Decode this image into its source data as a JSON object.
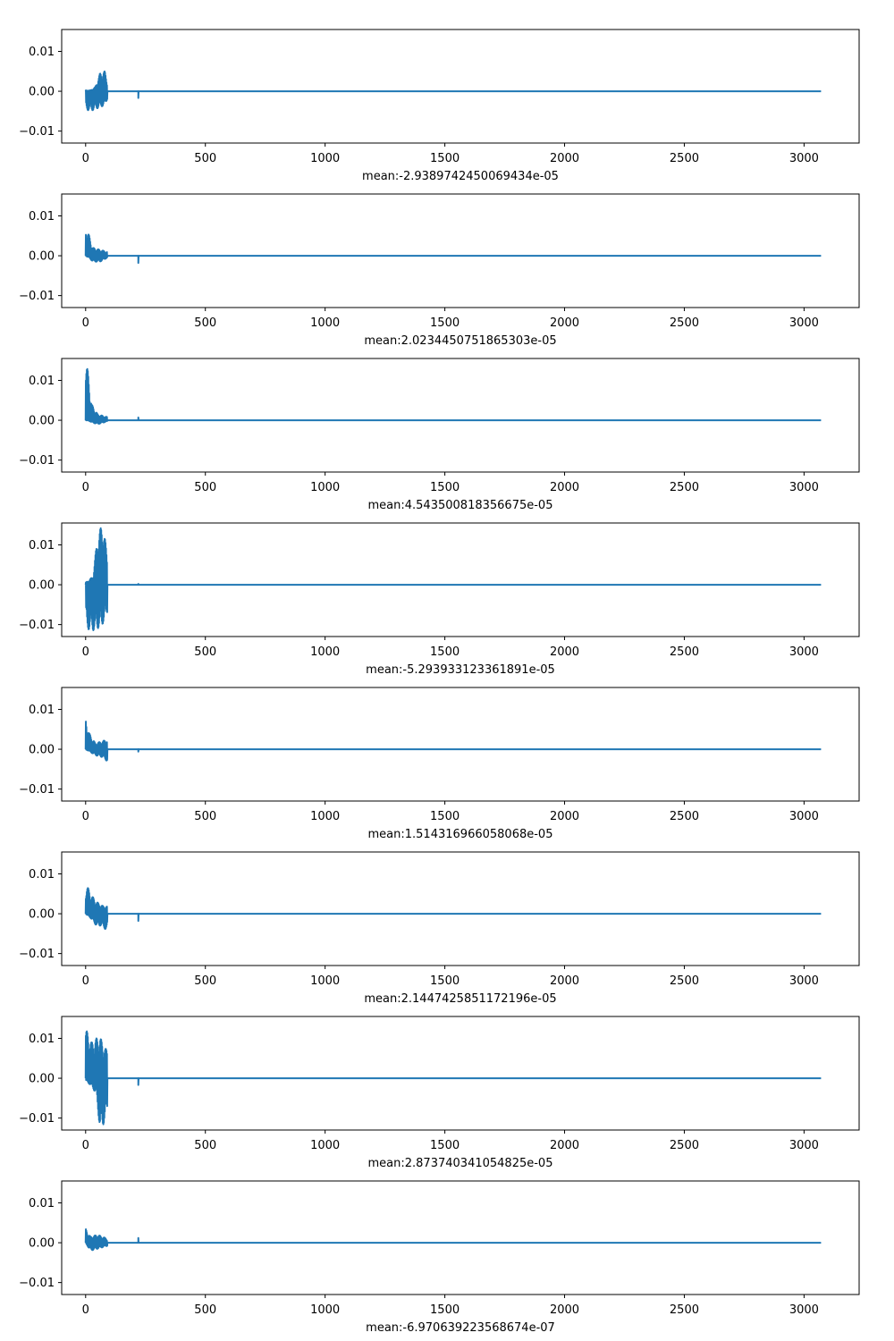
{
  "chart_data": [
    {
      "type": "line",
      "xlabel": "mean:-2.9389742450069434e-05",
      "xlim": [
        -100,
        3230
      ],
      "ylim": [
        -0.013,
        0.0155
      ],
      "xticks": [
        0,
        500,
        1000,
        1500,
        2000,
        2500,
        3000
      ],
      "yticks": [
        -0.01,
        0.0,
        0.01
      ],
      "xtick_labels": [
        "0",
        "500",
        "1000",
        "1500",
        "2000",
        "2500",
        "3000"
      ],
      "ytick_labels": [
        "−0.01",
        "0.00",
        "0.01"
      ],
      "x_end": 3071,
      "active_end": 90,
      "spike_x": 220,
      "spike_value": -0.0017,
      "envelope": [
        [
          0,
          -0.0045,
          0.0002
        ],
        [
          20,
          -0.005,
          0.0002
        ],
        [
          40,
          -0.0045,
          0.001
        ],
        [
          60,
          -0.004,
          0.0045
        ],
        [
          80,
          -0.0035,
          0.005
        ],
        [
          90,
          -0.002,
          0.003
        ]
      ]
    },
    {
      "type": "line",
      "xlabel": "mean:2.0234450751865303e-05",
      "xlim": [
        -100,
        3230
      ],
      "ylim": [
        -0.013,
        0.0155
      ],
      "xticks": [
        0,
        500,
        1000,
        1500,
        2000,
        2500,
        3000
      ],
      "yticks": [
        -0.01,
        0.0,
        0.01
      ],
      "xtick_labels": [
        "0",
        "500",
        "1000",
        "1500",
        "2000",
        "2500",
        "3000"
      ],
      "ytick_labels": [
        "−0.01",
        "0.00",
        "0.01"
      ],
      "x_end": 3071,
      "active_end": 90,
      "spike_x": 220,
      "spike_value": -0.0018,
      "envelope": [
        [
          0,
          0.0,
          0.0075
        ],
        [
          15,
          -0.0005,
          0.005
        ],
        [
          30,
          -0.0015,
          0.002
        ],
        [
          60,
          -0.0015,
          0.0015
        ],
        [
          90,
          -0.0005,
          0.001
        ]
      ]
    },
    {
      "type": "line",
      "xlabel": "mean:4.543500818356675e-05",
      "xlim": [
        -100,
        3230
      ],
      "ylim": [
        -0.013,
        0.0155
      ],
      "xticks": [
        0,
        500,
        1000,
        1500,
        2000,
        2500,
        3000
      ],
      "yticks": [
        -0.01,
        0.0,
        0.01
      ],
      "xtick_labels": [
        "0",
        "500",
        "1000",
        "1500",
        "2000",
        "2500",
        "3000"
      ],
      "ytick_labels": [
        "−0.01",
        "0.00",
        "0.01"
      ],
      "x_end": 3071,
      "active_end": 90,
      "spike_x": 220,
      "spike_value": 0.0007,
      "envelope": [
        [
          0,
          0.0,
          0.0155
        ],
        [
          10,
          0.0,
          0.012
        ],
        [
          25,
          -0.0005,
          0.004
        ],
        [
          50,
          -0.001,
          0.0015
        ],
        [
          90,
          -0.0003,
          0.0008
        ]
      ]
    },
    {
      "type": "line",
      "xlabel": "mean:-5.293933123361891e-05",
      "xlim": [
        -100,
        3230
      ],
      "ylim": [
        -0.013,
        0.0155
      ],
      "xticks": [
        0,
        500,
        1000,
        1500,
        2000,
        2500,
        3000
      ],
      "yticks": [
        -0.01,
        0.0,
        0.01
      ],
      "xtick_labels": [
        "0",
        "500",
        "1000",
        "1500",
        "2000",
        "2500",
        "3000"
      ],
      "ytick_labels": [
        "−0.01",
        "0.00",
        "0.01"
      ],
      "x_end": 3071,
      "active_end": 90,
      "spike_x": 220,
      "spike_value": 0.0002,
      "envelope": [
        [
          0,
          -0.011,
          0.0005
        ],
        [
          30,
          -0.0115,
          0.002
        ],
        [
          50,
          -0.011,
          0.012
        ],
        [
          70,
          -0.01,
          0.0155
        ],
        [
          90,
          -0.007,
          0.008
        ]
      ]
    },
    {
      "type": "line",
      "xlabel": "mean:1.514316966058068e-05",
      "xlim": [
        -100,
        3230
      ],
      "ylim": [
        -0.013,
        0.0155
      ],
      "xticks": [
        0,
        500,
        1000,
        1500,
        2000,
        2500,
        3000
      ],
      "yticks": [
        -0.01,
        0.0,
        0.01
      ],
      "xtick_labels": [
        "0",
        "500",
        "1000",
        "1500",
        "2000",
        "2500",
        "3000"
      ],
      "ytick_labels": [
        "−0.01",
        "0.00",
        "0.01"
      ],
      "x_end": 3071,
      "active_end": 90,
      "spike_x": 220,
      "spike_value": -0.0006,
      "envelope": [
        [
          0,
          0.0,
          0.008
        ],
        [
          15,
          -0.0005,
          0.004
        ],
        [
          40,
          -0.0015,
          0.0015
        ],
        [
          70,
          -0.002,
          0.002
        ],
        [
          90,
          -0.003,
          0.0025
        ]
      ]
    },
    {
      "type": "line",
      "xlabel": "mean:2.1447425851172196e-05",
      "xlim": [
        -100,
        3230
      ],
      "ylim": [
        -0.013,
        0.0155
      ],
      "xticks": [
        0,
        500,
        1000,
        1500,
        2000,
        2500,
        3000
      ],
      "yticks": [
        -0.01,
        0.0,
        0.01
      ],
      "xtick_labels": [
        "0",
        "500",
        "1000",
        "1500",
        "2000",
        "2500",
        "3000"
      ],
      "ytick_labels": [
        "−0.01",
        "0.00",
        "0.01"
      ],
      "x_end": 3071,
      "active_end": 90,
      "spike_x": 220,
      "spike_value": -0.0018,
      "envelope": [
        [
          0,
          0.0,
          0.008
        ],
        [
          20,
          -0.001,
          0.005
        ],
        [
          45,
          -0.003,
          0.003
        ],
        [
          70,
          -0.003,
          0.002
        ],
        [
          90,
          -0.0045,
          0.0018
        ]
      ]
    },
    {
      "type": "line",
      "xlabel": "mean:2.873740341054825e-05",
      "xlim": [
        -100,
        3230
      ],
      "ylim": [
        -0.013,
        0.0155
      ],
      "xticks": [
        0,
        500,
        1000,
        1500,
        2000,
        2500,
        3000
      ],
      "yticks": [
        -0.01,
        0.0,
        0.01
      ],
      "xtick_labels": [
        "0",
        "500",
        "1000",
        "1500",
        "2000",
        "2500",
        "3000"
      ],
      "ytick_labels": [
        "−0.01",
        "0.00",
        "0.01"
      ],
      "x_end": 3071,
      "active_end": 90,
      "spike_x": 220,
      "spike_value": -0.0017,
      "envelope": [
        [
          0,
          -0.0005,
          0.0125
        ],
        [
          25,
          -0.002,
          0.009
        ],
        [
          45,
          -0.004,
          0.01
        ],
        [
          60,
          -0.013,
          0.0105
        ],
        [
          75,
          -0.0115,
          0.008
        ],
        [
          90,
          -0.008,
          0.007
        ]
      ]
    },
    {
      "type": "line",
      "xlabel": "mean:-6.970639223568674e-07",
      "xlim": [
        -100,
        3230
      ],
      "ylim": [
        -0.013,
        0.0155
      ],
      "xticks": [
        0,
        500,
        1000,
        1500,
        2000,
        2500,
        3000
      ],
      "yticks": [
        -0.01,
        0.0,
        0.01
      ],
      "xtick_labels": [
        "0",
        "500",
        "1000",
        "1500",
        "2000",
        "2500",
        "3000"
      ],
      "ytick_labels": [
        "−0.01",
        "0.00",
        "0.01"
      ],
      "x_end": 3071,
      "active_end": 90,
      "spike_x": 220,
      "spike_value": 0.0012,
      "envelope": [
        [
          0,
          0.0,
          0.0035
        ],
        [
          20,
          -0.002,
          0.0015
        ],
        [
          50,
          -0.0015,
          0.002
        ],
        [
          90,
          -0.0008,
          0.001
        ]
      ]
    }
  ],
  "colors": {
    "line": "#1f77b4",
    "axes": "#000000",
    "background": "#ffffff"
  }
}
